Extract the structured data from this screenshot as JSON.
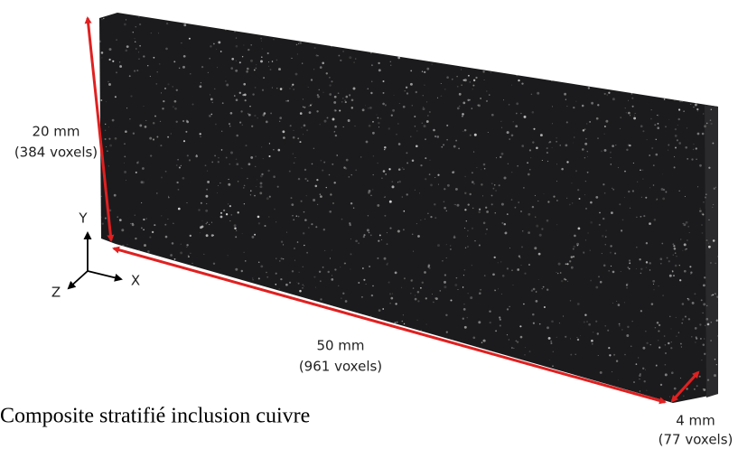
{
  "labels": {
    "height": {
      "size": "20 mm",
      "voxels": "(384 voxels)"
    },
    "length": {
      "size": "50 mm",
      "voxels": "(961 voxels)"
    },
    "depth": {
      "size": "4 mm",
      "voxels": "(77 voxels)"
    },
    "axes": {
      "y": "Y",
      "x": "X",
      "z": "Z"
    }
  },
  "caption": "Composite stratifié inclusion cuivre"
}
